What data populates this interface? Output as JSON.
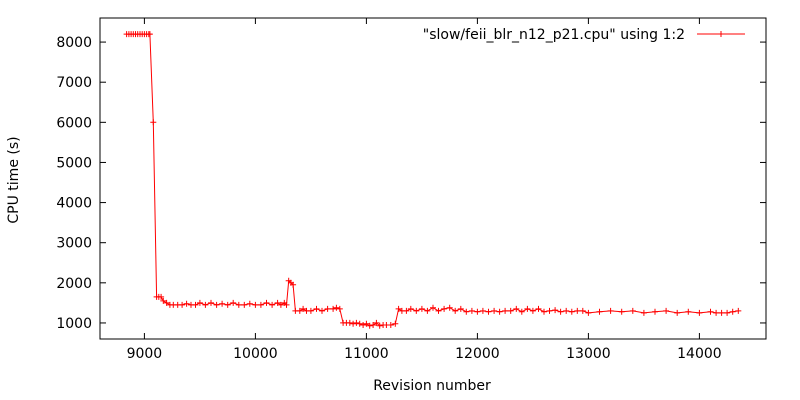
{
  "chart_data": {
    "type": "line",
    "title": "",
    "xlabel": "Revision number",
    "ylabel": "CPU time (s)",
    "xlim": [
      8600,
      14600
    ],
    "ylim": [
      600,
      8600
    ],
    "xticks": [
      9000,
      10000,
      11000,
      12000,
      13000,
      14000
    ],
    "yticks": [
      1000,
      2000,
      3000,
      4000,
      5000,
      6000,
      7000,
      8000
    ],
    "grid": false,
    "legend_position": "top-right",
    "line_color": "#ff0000",
    "marker": "plus",
    "series": [
      {
        "name": "\"slow/feii_blr_n12_p21.cpu\" using 1:2",
        "x": [
          8840,
          8860,
          8880,
          8900,
          8920,
          8940,
          8960,
          8980,
          9000,
          9020,
          9040,
          9050,
          9080,
          9110,
          9130,
          9150,
          9170,
          9200,
          9230,
          9260,
          9300,
          9340,
          9380,
          9420,
          9460,
          9500,
          9550,
          9600,
          9650,
          9700,
          9750,
          9800,
          9850,
          9900,
          9950,
          10000,
          10050,
          10100,
          10150,
          10200,
          10230,
          10260,
          10280,
          10300,
          10320,
          10340,
          10360,
          10400,
          10430,
          10460,
          10500,
          10550,
          10600,
          10650,
          10700,
          10730,
          10760,
          10790,
          10820,
          10850,
          10880,
          10910,
          10940,
          10970,
          11000,
          11030,
          11060,
          11090,
          11120,
          11150,
          11180,
          11220,
          11260,
          11290,
          11320,
          11360,
          11400,
          11450,
          11500,
          11550,
          11600,
          11650,
          11700,
          11750,
          11800,
          11850,
          11900,
          11950,
          12000,
          12050,
          12100,
          12150,
          12200,
          12250,
          12300,
          12350,
          12400,
          12450,
          12500,
          12550,
          12600,
          12650,
          12700,
          12750,
          12800,
          12850,
          12900,
          12950,
          13000,
          13100,
          13200,
          13300,
          13400,
          13500,
          13600,
          13700,
          13800,
          13900,
          14000,
          14100,
          14150,
          14200,
          14250,
          14300,
          14350
        ],
        "y": [
          8200,
          8200,
          8200,
          8200,
          8200,
          8200,
          8200,
          8200,
          8200,
          8200,
          8200,
          8200,
          6000,
          1650,
          1650,
          1650,
          1550,
          1500,
          1450,
          1450,
          1450,
          1450,
          1480,
          1450,
          1450,
          1500,
          1450,
          1500,
          1450,
          1480,
          1450,
          1500,
          1450,
          1450,
          1480,
          1450,
          1450,
          1500,
          1450,
          1500,
          1450,
          1500,
          1450,
          2050,
          2000,
          1950,
          1300,
          1300,
          1350,
          1300,
          1300,
          1350,
          1300,
          1350,
          1350,
          1380,
          1350,
          1000,
          1000,
          1000,
          980,
          1000,
          980,
          950,
          980,
          930,
          950,
          1000,
          930,
          950,
          950,
          950,
          980,
          1350,
          1300,
          1300,
          1350,
          1300,
          1350,
          1300,
          1380,
          1300,
          1350,
          1380,
          1300,
          1350,
          1280,
          1300,
          1280,
          1300,
          1280,
          1300,
          1280,
          1300,
          1300,
          1350,
          1280,
          1350,
          1300,
          1350,
          1280,
          1300,
          1320,
          1280,
          1300,
          1280,
          1300,
          1300,
          1250,
          1280,
          1300,
          1280,
          1300,
          1250,
          1280,
          1300,
          1250,
          1280,
          1250,
          1280,
          1250,
          1250,
          1250,
          1280,
          1300
        ]
      }
    ]
  }
}
